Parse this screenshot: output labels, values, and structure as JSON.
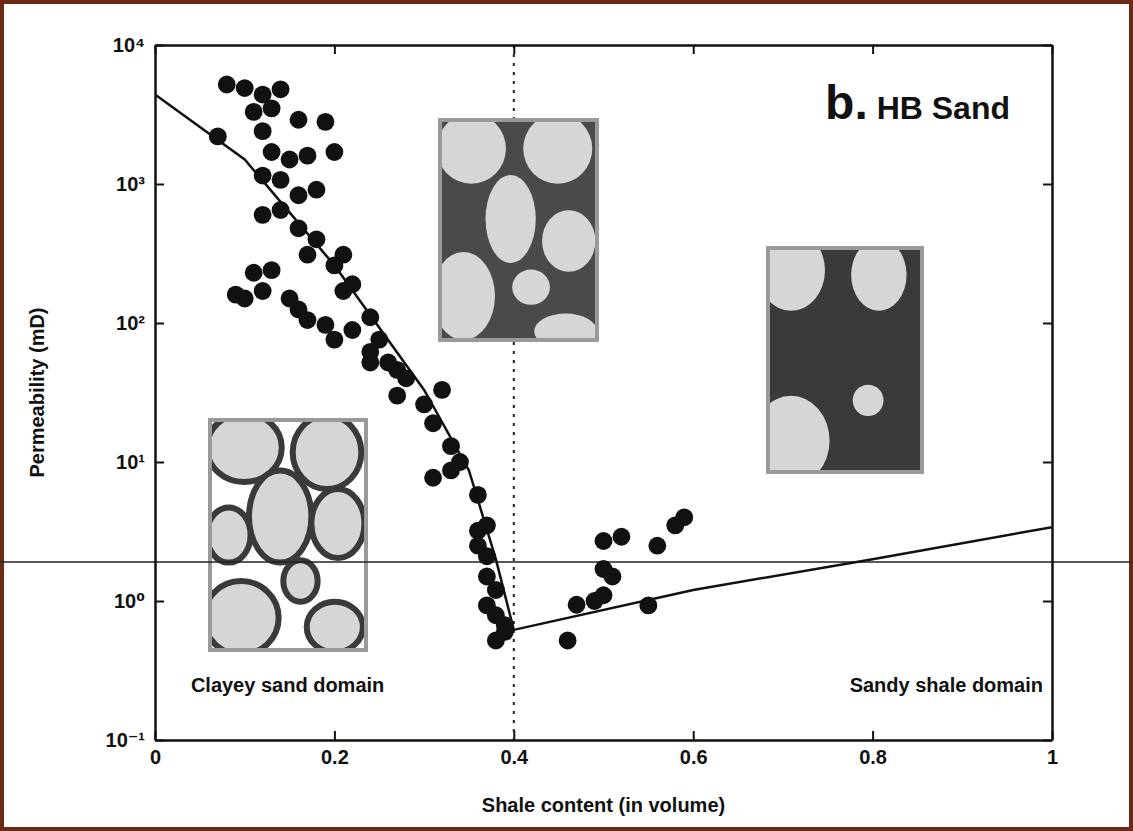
{
  "chart_data": {
    "type": "scatter",
    "title": "b. HB Sand",
    "x_label": "Shale content (in volume)",
    "y_label": "Permeability (mD)",
    "log": "y",
    "grid": false,
    "xlim": [
      0,
      1
    ],
    "xticks": [
      0,
      0.2,
      0.4,
      0.6,
      0.8,
      1
    ],
    "ylim": [
      0.1,
      10000
    ],
    "yticks": [
      {
        "value": 0.1,
        "label": "10⁻¹"
      },
      {
        "value": 1,
        "label": "10⁰"
      },
      {
        "value": 10,
        "label": "10¹"
      },
      {
        "value": 100,
        "label": "10²"
      },
      {
        "value": 1000,
        "label": "10³"
      },
      {
        "value": 10000,
        "label": "10⁴"
      }
    ],
    "series": [
      {
        "type": "scatter",
        "color": "#111111",
        "marker": "circle",
        "x": [
          0.08,
          0.07,
          0.1,
          0.12,
          0.14,
          0.11,
          0.13,
          0.16,
          0.19,
          0.2,
          0.17,
          0.12,
          0.13,
          0.15,
          0.12,
          0.14,
          0.16,
          0.18,
          0.12,
          0.14,
          0.16,
          0.18,
          0.17,
          0.21,
          0.2,
          0.22,
          0.21,
          0.13,
          0.11,
          0.09,
          0.12,
          0.15,
          0.16,
          0.17,
          0.19,
          0.2,
          0.22,
          0.24,
          0.25,
          0.24,
          0.24,
          0.26,
          0.27,
          0.28,
          0.27,
          0.3,
          0.32,
          0.31,
          0.33,
          0.34,
          0.31,
          0.33,
          0.36,
          0.36,
          0.37,
          0.36,
          0.37,
          0.37,
          0.38,
          0.37,
          0.38,
          0.39,
          0.39,
          0.38,
          0.1,
          0.46,
          0.47,
          0.49,
          0.5,
          0.51,
          0.5,
          0.5,
          0.52,
          0.56,
          0.58,
          0.59,
          0.55
        ],
        "values": [
          5200,
          2200,
          4900,
          4400,
          4800,
          3300,
          3500,
          2900,
          2800,
          1700,
          1600,
          2400,
          1700,
          1500,
          1150,
          1070,
          830,
          910,
          600,
          650,
          480,
          400,
          310,
          310,
          260,
          190,
          170,
          240,
          230,
          160,
          170,
          150,
          125,
          105,
          97,
          76,
          89,
          110,
          76,
          62,
          52,
          52,
          46,
          40,
          30,
          26,
          33,
          19,
          13,
          10,
          7.7,
          8.7,
          5.8,
          3.2,
          3.5,
          2.5,
          2.1,
          1.5,
          1.2,
          0.93,
          0.79,
          0.67,
          0.6,
          0.52,
          150,
          0.52,
          0.94,
          1,
          1.1,
          1.5,
          1.7,
          2.7,
          2.9,
          2.5,
          3.5,
          4.0,
          0.93
        ]
      },
      {
        "type": "line",
        "color": "#111111",
        "line_style": "solid",
        "x": [
          0,
          0.1,
          0.2,
          0.3,
          0.35,
          0.38,
          0.4,
          0.6,
          0.8,
          1
        ],
        "values": [
          4400,
          1500,
          260,
          33,
          8.7,
          2,
          0.62,
          1.2,
          2,
          3.4
        ]
      }
    ],
    "reference_lines": [
      {
        "x": 0.4,
        "line_style": "dotted"
      }
    ],
    "annotations": [
      {
        "text": "Clayey sand domain",
        "x": 0.04,
        "y": 0.22
      },
      {
        "text": "Sandy shale domain",
        "x": 0.99,
        "y": 0.22
      }
    ]
  }
}
